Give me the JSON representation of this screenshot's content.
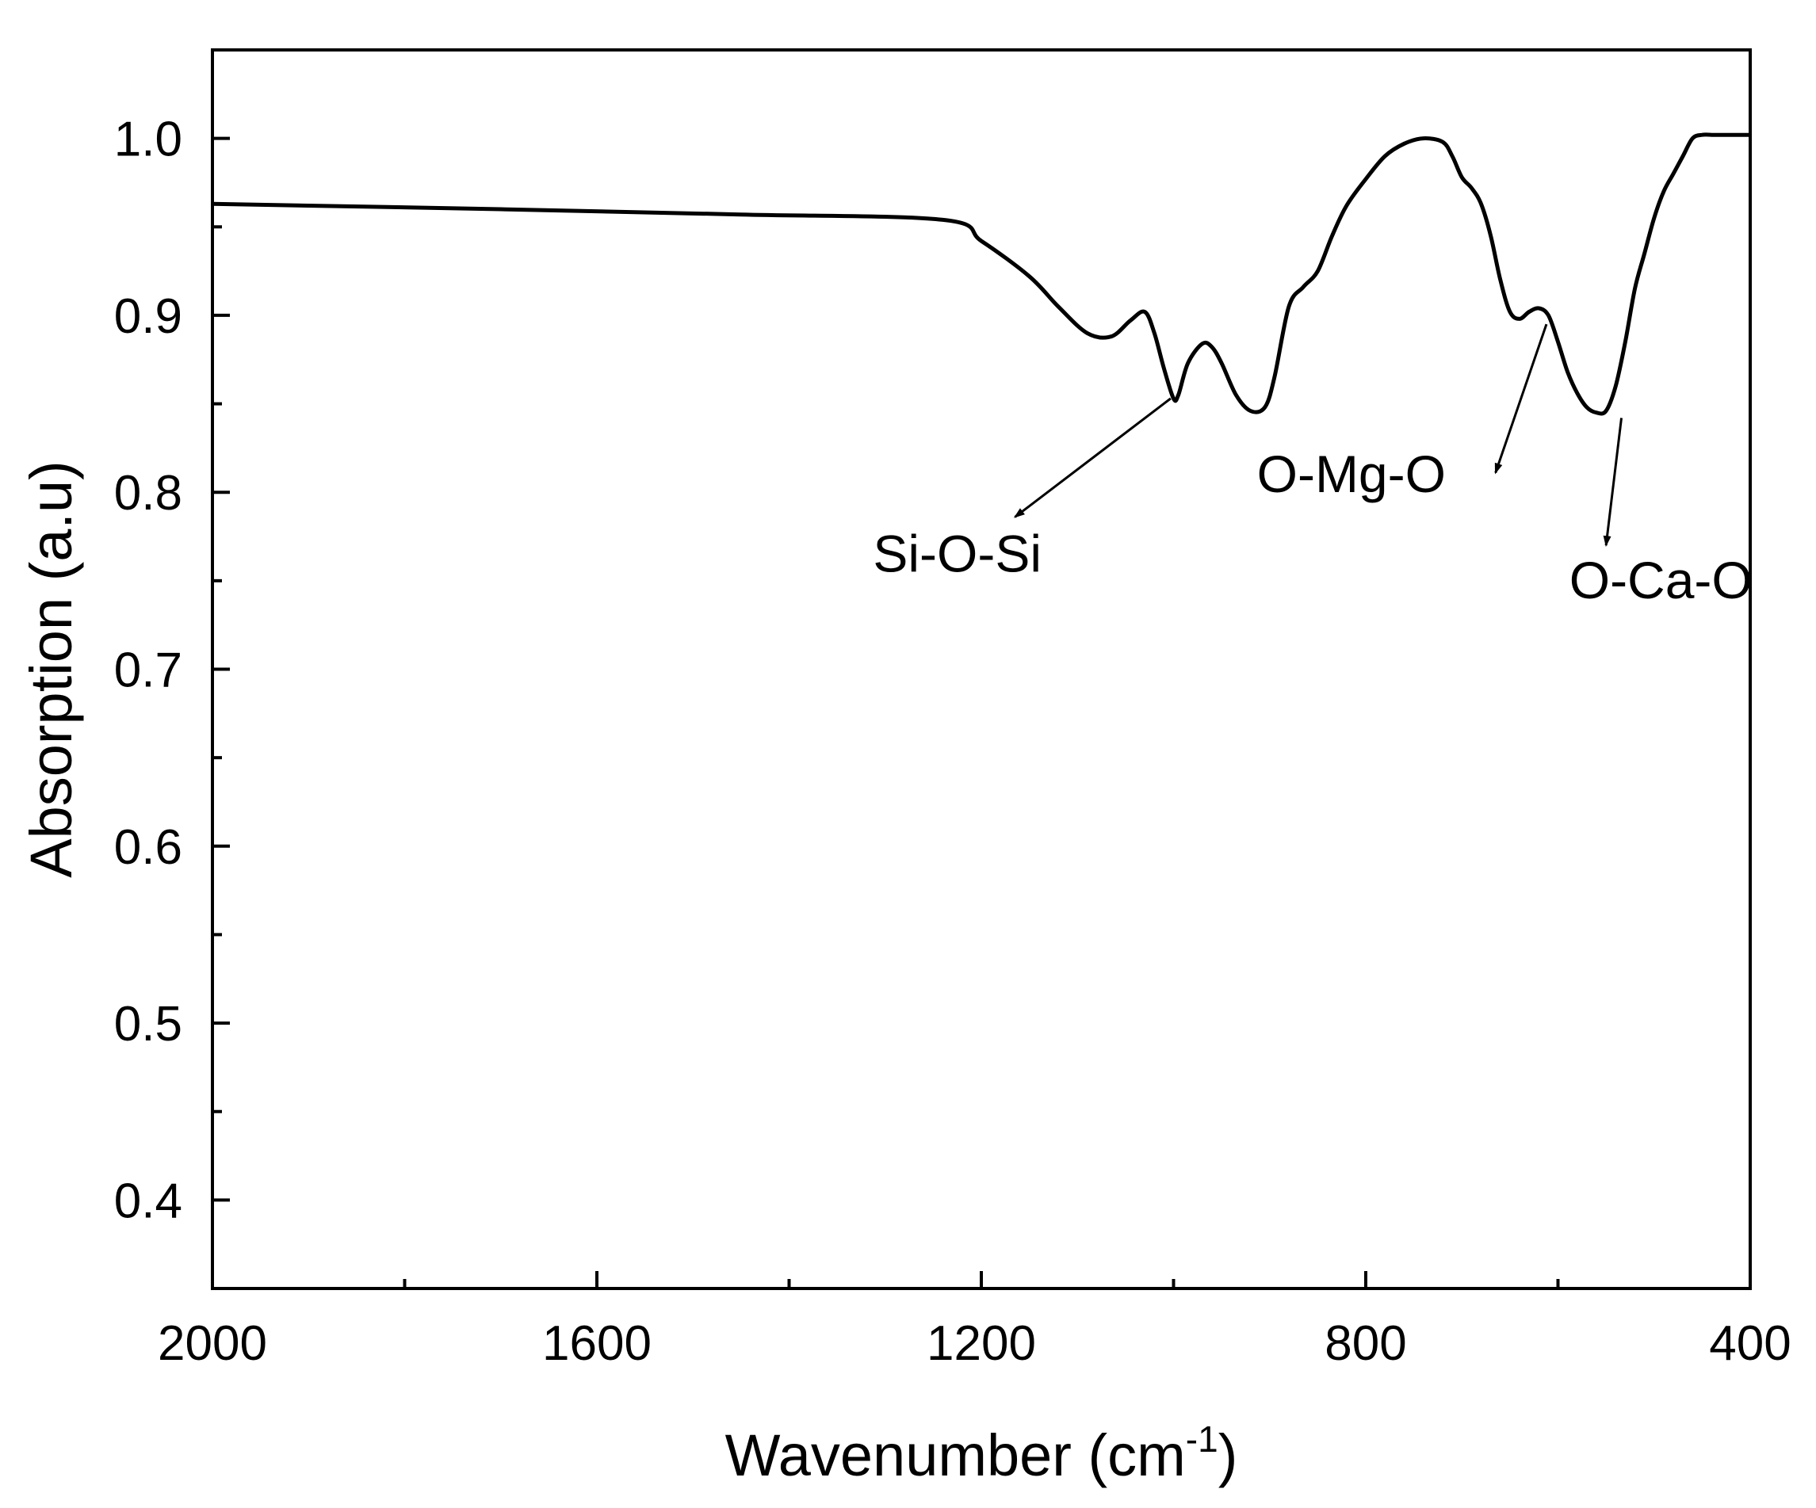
{
  "chart_data": {
    "type": "line",
    "xlabel": "Wavenumber (cm",
    "xlabel_sup": "-1",
    "xlabel_tail": ")",
    "ylabel": "Absorption (a.u)",
    "xlim": [
      2000,
      400
    ],
    "ylim": [
      0.35,
      1.05
    ],
    "x_reversed": true,
    "grid": false,
    "x_ticks": [
      2000,
      1600,
      1200,
      800,
      400
    ],
    "x_tick_labels": [
      "2000",
      "1600",
      "1200",
      "800",
      "400"
    ],
    "x_minor_ticks": [
      1800,
      1400,
      1000,
      600
    ],
    "y_ticks": [
      0.4,
      0.5,
      0.6,
      0.7,
      0.8,
      0.9,
      1.0
    ],
    "y_tick_labels": [
      "0.4",
      "0.5",
      "0.6",
      "0.7",
      "0.8",
      "0.9",
      "1.0"
    ],
    "y_minor_ticks": [
      0.45,
      0.55,
      0.65,
      0.75,
      0.85,
      0.95
    ],
    "series": [
      {
        "color": "#000000",
        "x": [
          2000,
          1700,
          1450,
          1240,
          1200,
          1150,
          1120,
          1090,
          1065,
          1045,
          1030,
          1020,
          1010,
          1000,
          995,
          985,
          970,
          960,
          950,
          935,
          920,
          905,
          895,
          880,
          865,
          850,
          835,
          820,
          800,
          780,
          760,
          740,
          720,
          710,
          700,
          690,
          680,
          670,
          660,
          650,
          640,
          630,
          620,
          610,
          600,
          590,
          580,
          570,
          560,
          550,
          540,
          530,
          520,
          510,
          500,
          490,
          480,
          470,
          460,
          450,
          440,
          430,
          420,
          410,
          400
        ],
        "y": [
          0.963,
          0.96,
          0.957,
          0.954,
          0.942,
          0.922,
          0.905,
          0.89,
          0.888,
          0.897,
          0.902,
          0.89,
          0.87,
          0.853,
          0.855,
          0.873,
          0.884,
          0.882,
          0.873,
          0.855,
          0.846,
          0.848,
          0.865,
          0.905,
          0.916,
          0.925,
          0.945,
          0.962,
          0.977,
          0.99,
          0.997,
          1.0,
          0.998,
          0.99,
          0.978,
          0.972,
          0.963,
          0.945,
          0.92,
          0.902,
          0.898,
          0.902,
          0.904,
          0.9,
          0.885,
          0.868,
          0.856,
          0.848,
          0.845,
          0.846,
          0.86,
          0.885,
          0.915,
          0.935,
          0.955,
          0.97,
          0.98,
          0.99,
          1.0,
          1.002,
          1.002,
          1.002,
          1.002,
          1.002,
          1.002
        ]
      }
    ],
    "annotations": [
      {
        "text": "Si-O-Si",
        "target_x": 1003,
        "target_y": 0.853,
        "text_x": 1225,
        "text_y": 0.755,
        "arrow_to_x": 1165,
        "arrow_to_y": 0.786
      },
      {
        "text": "O-Mg-O",
        "target_x": 612,
        "target_y": 0.895,
        "text_x": 815,
        "text_y": 0.8,
        "arrow_to_x": 665,
        "arrow_to_y": 0.811
      },
      {
        "text": "O-Ca-O",
        "target_x": 534,
        "target_y": 0.842,
        "text_x": 493,
        "text_y": 0.74,
        "arrow_to_x": 550,
        "arrow_to_y": 0.77
      }
    ]
  }
}
